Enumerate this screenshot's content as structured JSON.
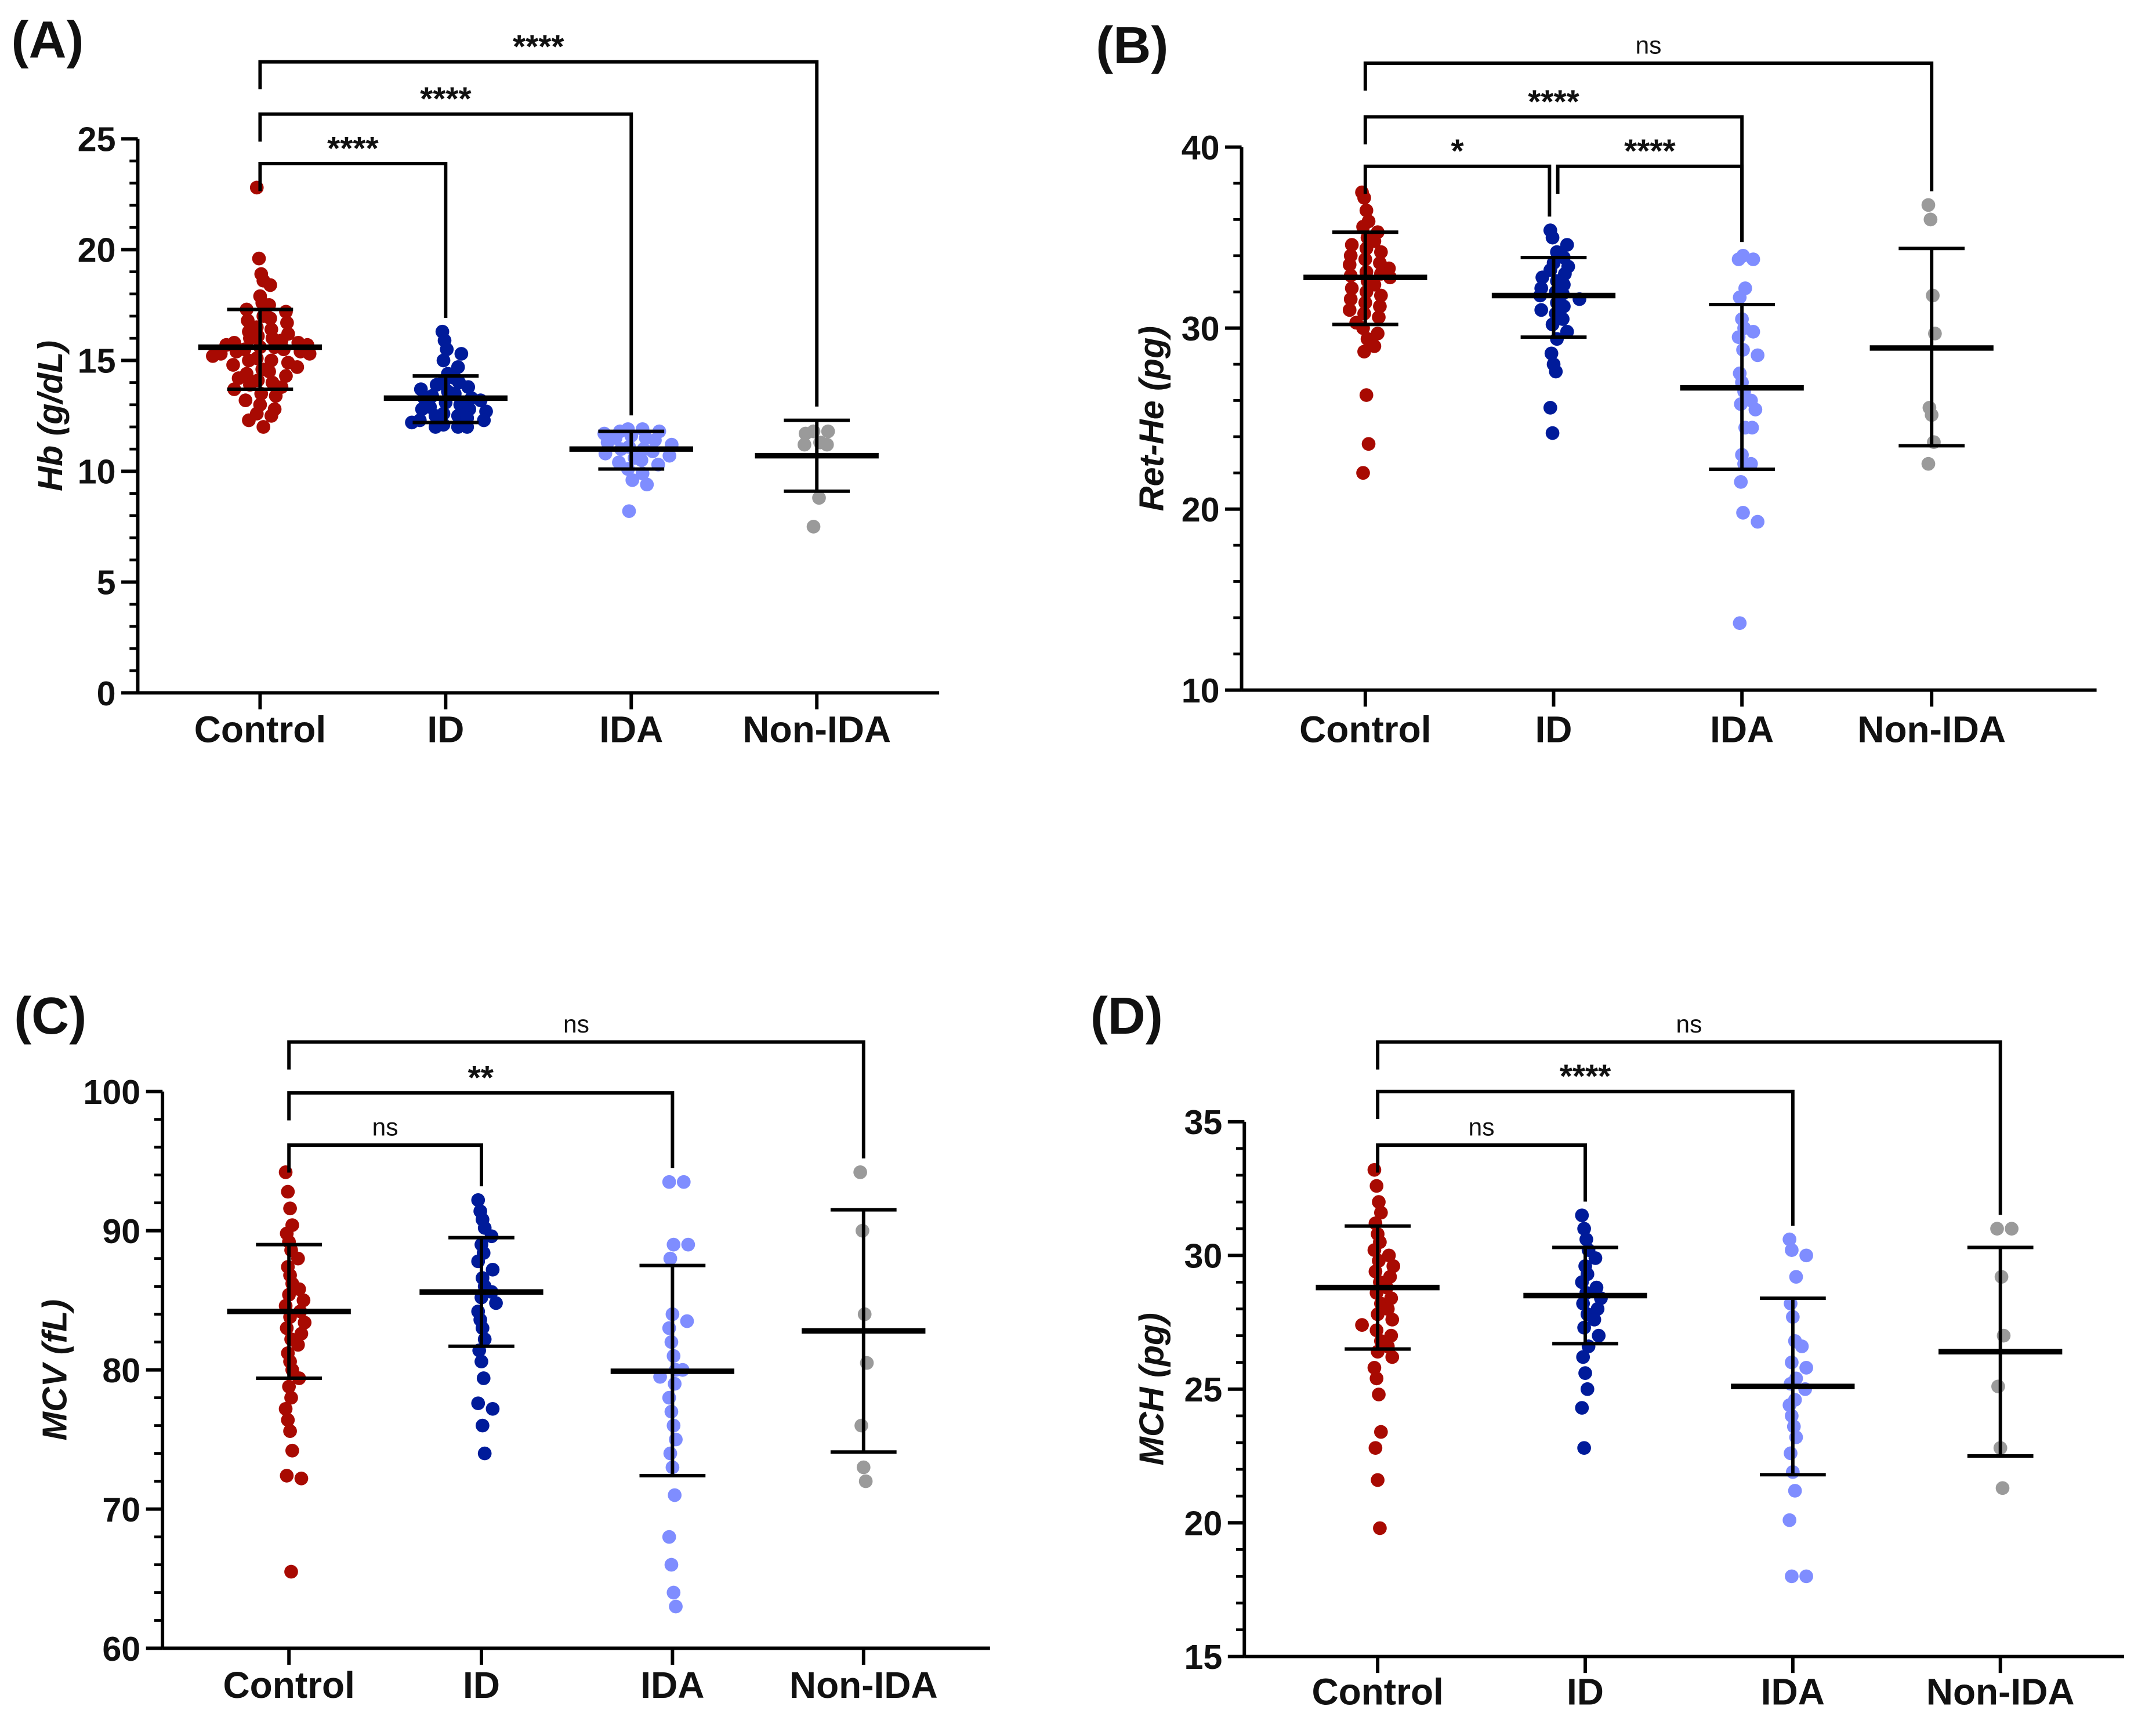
{
  "colors": {
    "Control": "#A80A02",
    "ID": "#001B9A",
    "IDA": "#7F8DFF",
    "Non-IDA": "#9A9A9A"
  },
  "chart_data": [
    {
      "type": "scatter",
      "panel_label": "(A)",
      "ylabel": "Hb (g/dL)",
      "ylim": [
        0,
        25
      ],
      "yticks": [
        0,
        5,
        10,
        15,
        20,
        25
      ],
      "minor_step": 1,
      "categories": [
        "Control",
        "ID",
        "IDA",
        "Non-IDA"
      ],
      "groups": [
        {
          "name": "Control",
          "mean": 15.6,
          "sd_low": 13.7,
          "sd_high": 17.3,
          "points": [
            22.8,
            19.6,
            18.9,
            18.6,
            18.4,
            17.9,
            17.6,
            17.5,
            17.3,
            17.2,
            17.0,
            16.9,
            16.8,
            16.7,
            16.5,
            16.4,
            16.3,
            16.2,
            16.1,
            16.0,
            16.0,
            15.9,
            15.8,
            15.8,
            15.7,
            15.7,
            15.6,
            15.6,
            15.5,
            15.5,
            15.4,
            15.4,
            15.3,
            15.3,
            15.2,
            15.1,
            15.0,
            15.0,
            14.9,
            14.8,
            14.7,
            14.6,
            14.5,
            14.4,
            14.3,
            14.2,
            14.1,
            14.0,
            13.9,
            13.8,
            13.7,
            13.5,
            13.4,
            13.2,
            13.0,
            12.8,
            12.6,
            12.5,
            12.3,
            12.0
          ]
        },
        {
          "name": "ID",
          "mean": 13.3,
          "sd_low": 12.2,
          "sd_high": 14.3,
          "points": [
            16.3,
            15.9,
            15.5,
            15.3,
            15.0,
            14.7,
            14.4,
            14.2,
            14.1,
            14.0,
            13.9,
            13.8,
            13.7,
            13.6,
            13.5,
            13.4,
            13.3,
            13.3,
            13.2,
            13.1,
            13.0,
            12.9,
            12.8,
            12.8,
            12.7,
            12.6,
            12.5,
            12.5,
            12.4,
            12.3,
            12.3,
            12.2,
            12.1,
            12.0,
            12.0,
            12.0
          ]
        },
        {
          "name": "IDA",
          "mean": 11.0,
          "sd_low": 10.1,
          "sd_high": 11.8,
          "points": [
            11.9,
            11.9,
            11.8,
            11.8,
            11.7,
            11.6,
            11.5,
            11.5,
            11.4,
            11.3,
            11.2,
            11.1,
            11.0,
            11.0,
            10.9,
            10.8,
            10.7,
            10.6,
            10.5,
            10.4,
            10.3,
            10.1,
            9.9,
            9.6,
            9.4,
            8.2
          ]
        },
        {
          "name": "Non-IDA",
          "mean": 10.7,
          "sd_low": 9.1,
          "sd_high": 12.3,
          "points": [
            11.8,
            11.8,
            11.7,
            11.3,
            11.2,
            11.2,
            8.8,
            7.5
          ]
        }
      ],
      "comparisons": [
        {
          "from": "Control",
          "to": "ID",
          "label": "****"
        },
        {
          "from": "Control",
          "to": "IDA",
          "label": "****"
        },
        {
          "from": "Control",
          "to": "Non-IDA",
          "label": "****"
        }
      ]
    },
    {
      "type": "scatter",
      "panel_label": "(B)",
      "ylabel": "Ret-He (pg)",
      "ylim": [
        10,
        40
      ],
      "yticks": [
        10,
        20,
        30,
        40
      ],
      "minor_step": 2,
      "categories": [
        "Control",
        "ID",
        "IDA",
        "Non-IDA"
      ],
      "groups": [
        {
          "name": "Control",
          "mean": 32.8,
          "sd_low": 30.2,
          "sd_high": 35.3,
          "points": [
            37.5,
            37.2,
            36.5,
            35.9,
            35.6,
            35.3,
            35.0,
            34.8,
            34.6,
            34.4,
            34.2,
            34.0,
            33.8,
            33.6,
            33.5,
            33.3,
            33.1,
            33.0,
            32.9,
            32.8,
            32.6,
            32.4,
            32.2,
            32.0,
            31.8,
            31.6,
            31.4,
            31.2,
            31.0,
            30.8,
            30.6,
            30.3,
            30.0,
            29.7,
            29.4,
            29.0,
            28.7,
            26.3,
            23.6,
            22.0
          ]
        },
        {
          "name": "ID",
          "mean": 31.8,
          "sd_low": 29.5,
          "sd_high": 33.9,
          "points": [
            35.4,
            35.0,
            34.6,
            34.2,
            33.9,
            33.6,
            33.4,
            33.2,
            33.0,
            32.8,
            32.6,
            32.4,
            32.2,
            32.0,
            31.9,
            31.8,
            31.6,
            31.4,
            31.2,
            31.0,
            30.8,
            30.5,
            30.2,
            29.8,
            29.4,
            28.6,
            28.0,
            27.6,
            25.6,
            24.2
          ]
        },
        {
          "name": "IDA",
          "mean": 26.7,
          "sd_low": 22.2,
          "sd_high": 31.3,
          "points": [
            33.8,
            33.8,
            34.0,
            32.2,
            31.7,
            30.5,
            30.0,
            29.5,
            29.8,
            28.8,
            28.5,
            27.5,
            27.0,
            26.5,
            26.0,
            25.8,
            25.5,
            24.5,
            24.5,
            23.0,
            22.5,
            22.5,
            21.5,
            19.8,
            19.3,
            13.7
          ]
        },
        {
          "name": "Non-IDA",
          "mean": 28.9,
          "sd_low": 23.5,
          "sd_high": 34.4,
          "points": [
            36.8,
            36.0,
            31.8,
            29.7,
            25.6,
            25.2,
            23.7,
            22.5
          ]
        }
      ],
      "comparisons": [
        {
          "from": "Control",
          "to": "ID",
          "label": "*"
        },
        {
          "from": "ID",
          "to": "IDA",
          "label": "****"
        },
        {
          "from": "Control",
          "to": "IDA",
          "label": "****"
        },
        {
          "from": "Control",
          "to": "Non-IDA",
          "label": "ns"
        }
      ]
    },
    {
      "type": "scatter",
      "panel_label": "(C)",
      "ylabel": "MCV (fL)",
      "ylim": [
        60,
        100
      ],
      "yticks": [
        60,
        70,
        80,
        90,
        100
      ],
      "minor_step": 2,
      "categories": [
        "Control",
        "ID",
        "IDA",
        "Non-IDA"
      ],
      "groups": [
        {
          "name": "Control",
          "mean": 84.2,
          "sd_low": 79.4,
          "sd_high": 89.0,
          "points": [
            94.2,
            92.8,
            91.6,
            90.4,
            89.8,
            89.2,
            88.6,
            88.0,
            87.4,
            86.8,
            86.2,
            85.8,
            85.4,
            85.0,
            84.6,
            84.2,
            83.8,
            83.4,
            83.0,
            82.6,
            82.2,
            81.8,
            81.2,
            80.6,
            80.0,
            79.4,
            78.8,
            78.0,
            77.2,
            76.4,
            75.6,
            74.2,
            72.4,
            72.2,
            65.5
          ]
        },
        {
          "name": "ID",
          "mean": 85.6,
          "sd_low": 81.7,
          "sd_high": 89.5,
          "points": [
            92.2,
            91.4,
            90.8,
            90.2,
            89.6,
            89.0,
            88.4,
            87.8,
            87.2,
            86.6,
            86.0,
            85.6,
            85.2,
            84.8,
            84.2,
            83.6,
            83.0,
            82.2,
            81.4,
            80.6,
            79.4,
            77.6,
            77.2,
            76.0,
            74.0
          ]
        },
        {
          "name": "IDA",
          "mean": 79.9,
          "sd_low": 72.4,
          "sd_high": 87.5,
          "points": [
            93.5,
            93.5,
            89.0,
            89.0,
            88.0,
            84.0,
            83.5,
            83.0,
            82.0,
            81.0,
            80.0,
            80.0,
            79.5,
            79.0,
            78.0,
            77.0,
            76.0,
            75.0,
            74.0,
            73.0,
            71.0,
            68.0,
            66.0,
            64.0,
            63.0
          ]
        },
        {
          "name": "Non-IDA",
          "mean": 82.8,
          "sd_low": 74.1,
          "sd_high": 91.5,
          "points": [
            94.2,
            90.0,
            84.0,
            80.5,
            76.0,
            73.0,
            72.0
          ]
        }
      ],
      "comparisons": [
        {
          "from": "Control",
          "to": "ID",
          "label": "ns"
        },
        {
          "from": "Control",
          "to": "IDA",
          "label": "**"
        },
        {
          "from": "Control",
          "to": "Non-IDA",
          "label": "ns"
        }
      ]
    },
    {
      "type": "scatter",
      "panel_label": "(D)",
      "ylabel": "MCH (pg)",
      "ylim": [
        15,
        35
      ],
      "yticks": [
        15,
        20,
        25,
        30,
        35
      ],
      "minor_step": 1,
      "categories": [
        "Control",
        "ID",
        "IDA",
        "Non-IDA"
      ],
      "groups": [
        {
          "name": "Control",
          "mean": 28.8,
          "sd_low": 26.5,
          "sd_high": 31.1,
          "points": [
            33.2,
            32.6,
            32.0,
            31.6,
            31.2,
            30.8,
            30.5,
            30.2,
            30.0,
            29.8,
            29.6,
            29.4,
            29.2,
            29.0,
            28.8,
            28.6,
            28.4,
            28.2,
            28.0,
            27.8,
            27.6,
            27.4,
            27.2,
            27.0,
            26.8,
            26.6,
            26.4,
            26.2,
            25.8,
            25.4,
            24.8,
            23.4,
            22.8,
            21.6,
            19.8
          ]
        },
        {
          "name": "ID",
          "mean": 28.5,
          "sd_low": 26.7,
          "sd_high": 30.3,
          "points": [
            31.5,
            31.0,
            30.6,
            30.2,
            29.9,
            29.6,
            29.3,
            29.0,
            28.8,
            28.6,
            28.4,
            28.2,
            28.0,
            27.8,
            27.6,
            27.3,
            27.0,
            26.6,
            26.2,
            25.6,
            25.0,
            24.3,
            22.8
          ]
        },
        {
          "name": "IDA",
          "mean": 25.1,
          "sd_low": 21.8,
          "sd_high": 28.4,
          "points": [
            30.6,
            30.2,
            30.0,
            29.2,
            28.2,
            27.7,
            26.8,
            26.6,
            26.0,
            25.8,
            25.4,
            25.2,
            25.0,
            24.6,
            24.4,
            24.0,
            23.6,
            23.2,
            22.6,
            21.9,
            21.2,
            20.1,
            18.0,
            18.0
          ]
        },
        {
          "name": "Non-IDA",
          "mean": 26.4,
          "sd_low": 22.5,
          "sd_high": 30.3,
          "points": [
            31.0,
            31.0,
            29.2,
            27.0,
            25.1,
            22.8,
            21.3
          ]
        }
      ],
      "comparisons": [
        {
          "from": "Control",
          "to": "ID",
          "label": "ns"
        },
        {
          "from": "Control",
          "to": "IDA",
          "label": "****"
        },
        {
          "from": "Control",
          "to": "Non-IDA",
          "label": "ns"
        }
      ]
    }
  ]
}
